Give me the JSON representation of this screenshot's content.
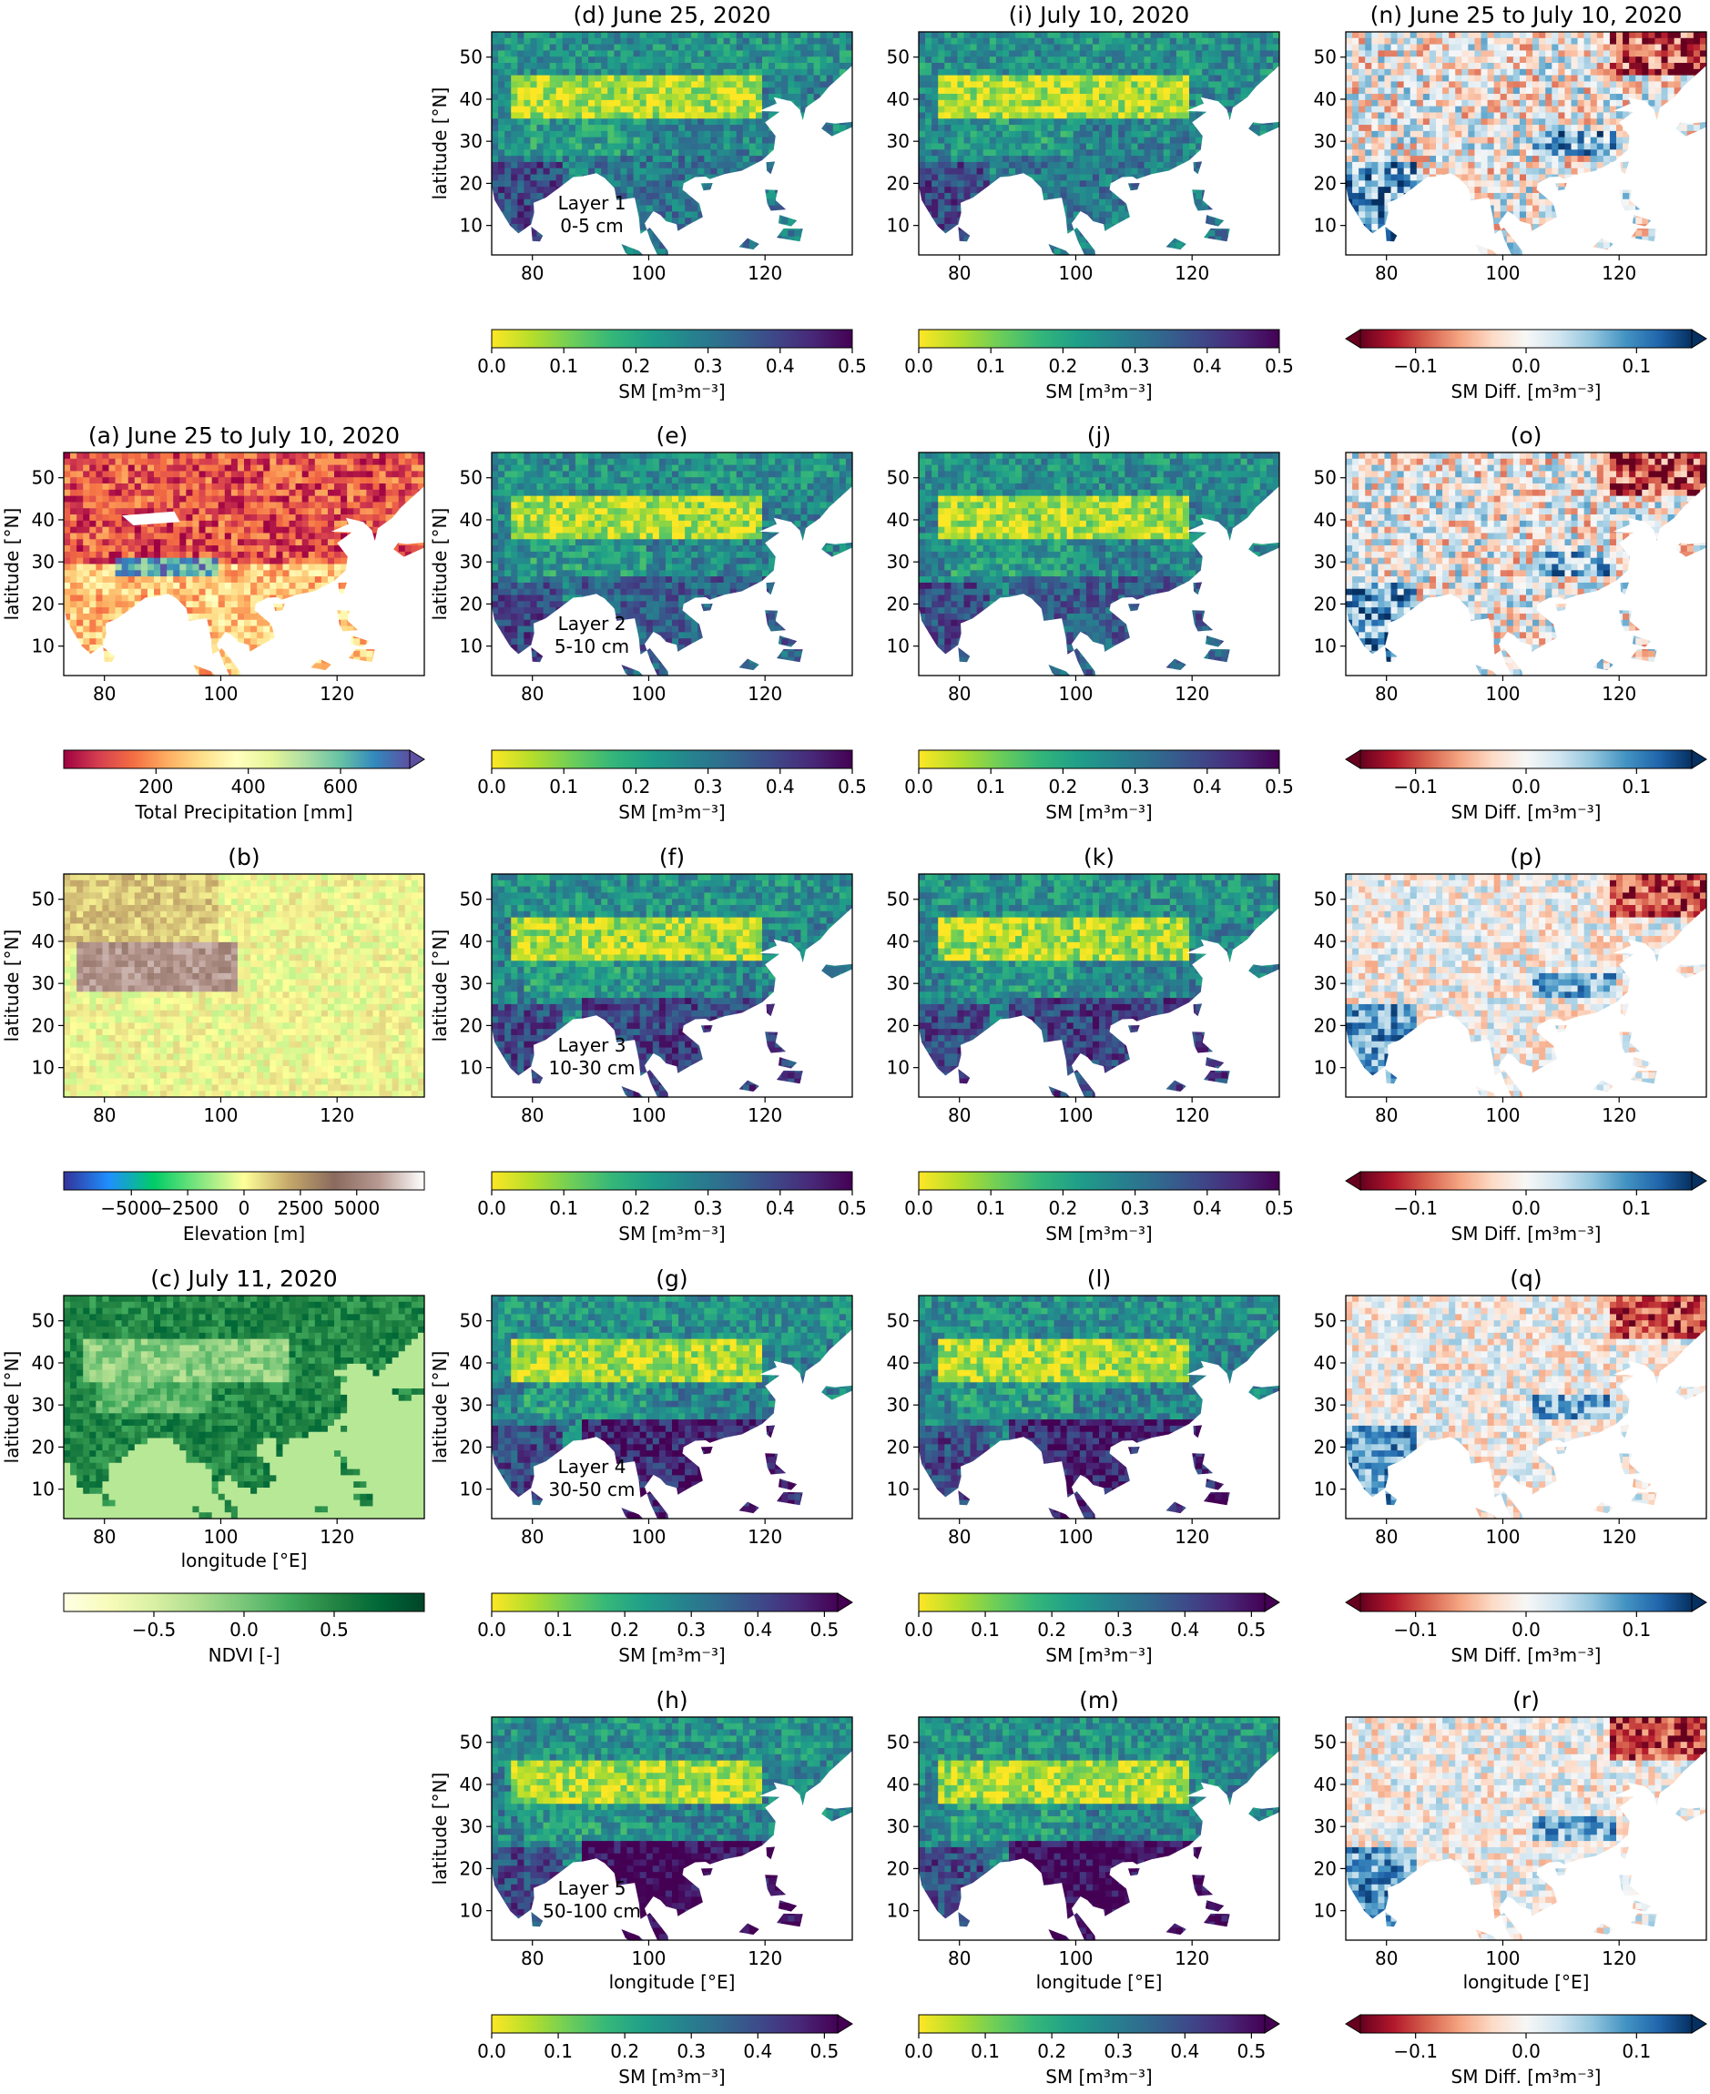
{
  "figure": {
    "description_free": true,
    "colors": {
      "sea": "#ffffff",
      "frame": "#000000",
      "viridis": [
        "#fde725",
        "#b5de2b",
        "#6ece58",
        "#35b779",
        "#1f9e89",
        "#26828e",
        "#31688e",
        "#3e4989",
        "#482878",
        "#440154"
      ],
      "rdbu": [
        "#67001f",
        "#b2182b",
        "#d6604d",
        "#f4a582",
        "#fddbc7",
        "#f7f7f7",
        "#d1e5f0",
        "#92c5de",
        "#4393c3",
        "#2166ac",
        "#053061"
      ],
      "spectral": [
        "#9e0142",
        "#d53e4f",
        "#f46d43",
        "#fdae61",
        "#fee08b",
        "#ffffbf",
        "#e6f598",
        "#abdda4",
        "#66c2a5",
        "#3288bd",
        "#5e4fa2"
      ],
      "terrain": [
        "#333399",
        "#1f8fff",
        "#00cc66",
        "#80e680",
        "#ffff99",
        "#c4a86a",
        "#8a6a5e",
        "#b89a92",
        "#ffffff"
      ],
      "greens": [
        "#ffffe5",
        "#f7fcb9",
        "#d9f0a3",
        "#addd8e",
        "#78c679",
        "#41ab5d",
        "#238443",
        "#006837",
        "#004529"
      ]
    }
  },
  "chart_data": [
    {
      "id": "a",
      "type": "heatmap",
      "title": "(a) June 25 to July 10, 2020",
      "variable": "Total Precipitation",
      "colormap": "Spectral",
      "xlabel": "",
      "ylabel": "latitude [°N]",
      "xlim": [
        73,
        135
      ],
      "ylim": [
        3,
        56
      ],
      "xticks": [
        80,
        100,
        120
      ],
      "yticks": [
        10,
        20,
        30,
        40,
        50
      ],
      "colorbar": {
        "label": "Total Precipitation [mm]",
        "range": [
          0,
          750
        ],
        "ticks": [
          200,
          400,
          600
        ],
        "extend": "max"
      }
    },
    {
      "id": "b",
      "type": "heatmap",
      "title": "(b)",
      "variable": "Elevation",
      "colormap": "terrain",
      "xlabel": "",
      "ylabel": "latitude [°N]",
      "xlim": [
        73,
        135
      ],
      "ylim": [
        3,
        56
      ],
      "xticks": [
        80,
        100,
        120
      ],
      "yticks": [
        10,
        20,
        30,
        40,
        50
      ],
      "colorbar": {
        "label": "Elevation [m]",
        "range": [
          -8000,
          8000
        ],
        "ticks": [
          -5000,
          -2500,
          0,
          2500,
          5000
        ],
        "tick_labels": [
          "−5000",
          "−2500",
          "0",
          "2500",
          "5000"
        ],
        "extend": "neither"
      }
    },
    {
      "id": "c",
      "type": "heatmap",
      "title": "(c) July 11, 2020",
      "variable": "NDVI",
      "colormap": "Greens",
      "xlabel": "longitude [°E]",
      "ylabel": "latitude [°N]",
      "xlim": [
        73,
        135
      ],
      "ylim": [
        3,
        56
      ],
      "xticks": [
        80,
        100,
        120
      ],
      "yticks": [
        10,
        20,
        30,
        40,
        50
      ],
      "colorbar": {
        "label": "NDVI [-]",
        "range": [
          -1,
          1
        ],
        "ticks": [
          -0.5,
          0.0,
          0.5
        ],
        "tick_labels": [
          "−0.5",
          "0.0",
          "0.5"
        ],
        "extend": "neither"
      }
    },
    {
      "id": "d",
      "type": "heatmap",
      "title": "(d) June 25, 2020",
      "variable": "SM",
      "layer": "Layer 1",
      "depth": "0-5 cm",
      "colormap": "viridis_r",
      "xlabel": "",
      "ylabel": "latitude [°N]",
      "xlim": [
        73,
        135
      ],
      "ylim": [
        3,
        56
      ],
      "xticks": [
        80,
        100,
        120
      ],
      "yticks": [
        10,
        20,
        30,
        40,
        50
      ],
      "colorbar": {
        "label": "SM [m³m⁻³]",
        "range": [
          0,
          0.5
        ],
        "ticks": [
          0.0,
          0.1,
          0.2,
          0.3,
          0.4,
          0.5
        ],
        "tick_labels": [
          "0.0",
          "0.1",
          "0.2",
          "0.3",
          "0.4",
          "0.5"
        ],
        "extend": "neither"
      }
    },
    {
      "id": "e",
      "type": "heatmap",
      "title": "(e)",
      "variable": "SM",
      "layer": "Layer 2",
      "depth": "5-10 cm",
      "colormap": "viridis_r",
      "xlabel": "",
      "ylabel": "latitude [°N]",
      "xlim": [
        73,
        135
      ],
      "ylim": [
        3,
        56
      ],
      "xticks": [
        80,
        100,
        120
      ],
      "yticks": [
        10,
        20,
        30,
        40,
        50
      ],
      "colorbar": {
        "label": "SM [m³m⁻³]",
        "range": [
          0,
          0.5
        ],
        "ticks": [
          0.0,
          0.1,
          0.2,
          0.3,
          0.4,
          0.5
        ],
        "tick_labels": [
          "0.0",
          "0.1",
          "0.2",
          "0.3",
          "0.4",
          "0.5"
        ],
        "extend": "neither"
      }
    },
    {
      "id": "f",
      "type": "heatmap",
      "title": "(f)",
      "variable": "SM",
      "layer": "Layer 3",
      "depth": "10-30 cm",
      "colormap": "viridis_r",
      "xlabel": "",
      "ylabel": "latitude [°N]",
      "xlim": [
        73,
        135
      ],
      "ylim": [
        3,
        56
      ],
      "xticks": [
        80,
        100,
        120
      ],
      "yticks": [
        10,
        20,
        30,
        40,
        50
      ],
      "colorbar": {
        "label": "SM [m³m⁻³]",
        "range": [
          0,
          0.5
        ],
        "ticks": [
          0.0,
          0.1,
          0.2,
          0.3,
          0.4,
          0.5
        ],
        "tick_labels": [
          "0.0",
          "0.1",
          "0.2",
          "0.3",
          "0.4",
          "0.5"
        ],
        "extend": "neither"
      }
    },
    {
      "id": "g",
      "type": "heatmap",
      "title": "(g)",
      "variable": "SM",
      "layer": "Layer 4",
      "depth": "30-50 cm",
      "colormap": "viridis_r",
      "xlabel": "",
      "ylabel": "latitude [°N]",
      "xlim": [
        73,
        135
      ],
      "ylim": [
        3,
        56
      ],
      "xticks": [
        80,
        100,
        120
      ],
      "yticks": [
        10,
        20,
        30,
        40,
        50
      ],
      "colorbar": {
        "label": "SM [m³m⁻³]",
        "range": [
          0,
          0.52
        ],
        "ticks": [
          0.0,
          0.1,
          0.2,
          0.3,
          0.4,
          0.5
        ],
        "tick_labels": [
          "0.0",
          "0.1",
          "0.2",
          "0.3",
          "0.4",
          "0.5"
        ],
        "extend": "max"
      }
    },
    {
      "id": "h",
      "type": "heatmap",
      "title": "(h)",
      "variable": "SM",
      "layer": "Layer 5",
      "depth": "50-100 cm",
      "colormap": "viridis_r",
      "xlabel": "longitude [°E]",
      "ylabel": "latitude [°N]",
      "xlim": [
        73,
        135
      ],
      "ylim": [
        3,
        56
      ],
      "xticks": [
        80,
        100,
        120
      ],
      "yticks": [
        10,
        20,
        30,
        40,
        50
      ],
      "colorbar": {
        "label": "SM [m³m⁻³]",
        "range": [
          0,
          0.52
        ],
        "ticks": [
          0.0,
          0.1,
          0.2,
          0.3,
          0.4,
          0.5
        ],
        "tick_labels": [
          "0.0",
          "0.1",
          "0.2",
          "0.3",
          "0.4",
          "0.5"
        ],
        "extend": "max"
      }
    },
    {
      "id": "i",
      "type": "heatmap",
      "title": "(i) July 10, 2020",
      "variable": "SM",
      "colormap": "viridis_r",
      "xlabel": "",
      "ylabel": "",
      "xlim": [
        73,
        135
      ],
      "ylim": [
        3,
        56
      ],
      "xticks": [
        80,
        100,
        120
      ],
      "yticks": [
        10,
        20,
        30,
        40,
        50
      ],
      "colorbar": {
        "label": "SM [m³m⁻³]",
        "range": [
          0,
          0.5
        ],
        "ticks": [
          0.0,
          0.1,
          0.2,
          0.3,
          0.4,
          0.5
        ],
        "tick_labels": [
          "0.0",
          "0.1",
          "0.2",
          "0.3",
          "0.4",
          "0.5"
        ],
        "extend": "neither"
      }
    },
    {
      "id": "j",
      "type": "heatmap",
      "title": "(j)",
      "variable": "SM",
      "colormap": "viridis_r",
      "xlabel": "",
      "ylabel": "",
      "xlim": [
        73,
        135
      ],
      "ylim": [
        3,
        56
      ],
      "xticks": [
        80,
        100,
        120
      ],
      "yticks": [
        10,
        20,
        30,
        40,
        50
      ],
      "colorbar": {
        "label": "SM [m³m⁻³]",
        "range": [
          0,
          0.5
        ],
        "ticks": [
          0.0,
          0.1,
          0.2,
          0.3,
          0.4,
          0.5
        ],
        "tick_labels": [
          "0.0",
          "0.1",
          "0.2",
          "0.3",
          "0.4",
          "0.5"
        ],
        "extend": "neither"
      }
    },
    {
      "id": "k",
      "type": "heatmap",
      "title": "(k)",
      "variable": "SM",
      "colormap": "viridis_r",
      "xlabel": "",
      "ylabel": "",
      "xlim": [
        73,
        135
      ],
      "ylim": [
        3,
        56
      ],
      "xticks": [
        80,
        100,
        120
      ],
      "yticks": [
        10,
        20,
        30,
        40,
        50
      ],
      "colorbar": {
        "label": "SM [m³m⁻³]",
        "range": [
          0,
          0.5
        ],
        "ticks": [
          0.0,
          0.1,
          0.2,
          0.3,
          0.4,
          0.5
        ],
        "tick_labels": [
          "0.0",
          "0.1",
          "0.2",
          "0.3",
          "0.4",
          "0.5"
        ],
        "extend": "neither"
      }
    },
    {
      "id": "l",
      "type": "heatmap",
      "title": "(l)",
      "variable": "SM",
      "colormap": "viridis_r",
      "xlabel": "",
      "ylabel": "",
      "xlim": [
        73,
        135
      ],
      "ylim": [
        3,
        56
      ],
      "xticks": [
        80,
        100,
        120
      ],
      "yticks": [
        10,
        20,
        30,
        40,
        50
      ],
      "colorbar": {
        "label": "SM [m³m⁻³]",
        "range": [
          0,
          0.52
        ],
        "ticks": [
          0.0,
          0.1,
          0.2,
          0.3,
          0.4,
          0.5
        ],
        "tick_labels": [
          "0.0",
          "0.1",
          "0.2",
          "0.3",
          "0.4",
          "0.5"
        ],
        "extend": "max"
      }
    },
    {
      "id": "m",
      "type": "heatmap",
      "title": "(m)",
      "variable": "SM",
      "colormap": "viridis_r",
      "xlabel": "longitude [°E]",
      "ylabel": "",
      "xlim": [
        73,
        135
      ],
      "ylim": [
        3,
        56
      ],
      "xticks": [
        80,
        100,
        120
      ],
      "yticks": [
        10,
        20,
        30,
        40,
        50
      ],
      "colorbar": {
        "label": "SM [m³m⁻³]",
        "range": [
          0,
          0.52
        ],
        "ticks": [
          0.0,
          0.1,
          0.2,
          0.3,
          0.4,
          0.5
        ],
        "tick_labels": [
          "0.0",
          "0.1",
          "0.2",
          "0.3",
          "0.4",
          "0.5"
        ],
        "extend": "max"
      }
    },
    {
      "id": "n",
      "type": "heatmap",
      "title": "(n) June 25 to July 10, 2020",
      "variable": "SM Diff.",
      "colormap": "RdBu",
      "xlabel": "",
      "ylabel": "",
      "xlim": [
        73,
        135
      ],
      "ylim": [
        3,
        56
      ],
      "xticks": [
        80,
        100,
        120
      ],
      "yticks": [
        10,
        20,
        30,
        40,
        50
      ],
      "colorbar": {
        "label": "SM Diff. [m³m⁻³]",
        "range": [
          -0.15,
          0.15
        ],
        "ticks": [
          -0.1,
          0.0,
          0.1
        ],
        "tick_labels": [
          "−0.1",
          "0.0",
          "0.1"
        ],
        "extend": "both"
      }
    },
    {
      "id": "o",
      "type": "heatmap",
      "title": "(o)",
      "variable": "SM Diff.",
      "colormap": "RdBu",
      "xlabel": "",
      "ylabel": "",
      "xlim": [
        73,
        135
      ],
      "ylim": [
        3,
        56
      ],
      "xticks": [
        80,
        100,
        120
      ],
      "yticks": [
        10,
        20,
        30,
        40,
        50
      ],
      "colorbar": {
        "label": "SM Diff. [m³m⁻³]",
        "range": [
          -0.15,
          0.15
        ],
        "ticks": [
          -0.1,
          0.0,
          0.1
        ],
        "tick_labels": [
          "−0.1",
          "0.0",
          "0.1"
        ],
        "extend": "both"
      }
    },
    {
      "id": "p",
      "type": "heatmap",
      "title": "(p)",
      "variable": "SM Diff.",
      "colormap": "RdBu",
      "xlabel": "",
      "ylabel": "",
      "xlim": [
        73,
        135
      ],
      "ylim": [
        3,
        56
      ],
      "xticks": [
        80,
        100,
        120
      ],
      "yticks": [
        10,
        20,
        30,
        40,
        50
      ],
      "colorbar": {
        "label": "SM Diff. [m³m⁻³]",
        "range": [
          -0.15,
          0.15
        ],
        "ticks": [
          -0.1,
          0.0,
          0.1
        ],
        "tick_labels": [
          "−0.1",
          "0.0",
          "0.1"
        ],
        "extend": "both"
      }
    },
    {
      "id": "q",
      "type": "heatmap",
      "title": "(q)",
      "variable": "SM Diff.",
      "colormap": "RdBu",
      "xlabel": "",
      "ylabel": "",
      "xlim": [
        73,
        135
      ],
      "ylim": [
        3,
        56
      ],
      "xticks": [
        80,
        100,
        120
      ],
      "yticks": [
        10,
        20,
        30,
        40,
        50
      ],
      "colorbar": {
        "label": "SM Diff. [m³m⁻³]",
        "range": [
          -0.15,
          0.15
        ],
        "ticks": [
          -0.1,
          0.0,
          0.1
        ],
        "tick_labels": [
          "−0.1",
          "0.0",
          "0.1"
        ],
        "extend": "both"
      }
    },
    {
      "id": "r",
      "type": "heatmap",
      "title": "(r)",
      "variable": "SM Diff.",
      "colormap": "RdBu",
      "xlabel": "longitude [°E]",
      "ylabel": "",
      "xlim": [
        73,
        135
      ],
      "ylim": [
        3,
        56
      ],
      "xticks": [
        80,
        100,
        120
      ],
      "yticks": [
        10,
        20,
        30,
        40,
        50
      ],
      "colorbar": {
        "label": "SM Diff. [m³m⁻³]",
        "range": [
          -0.15,
          0.15
        ],
        "ticks": [
          -0.1,
          0.0,
          0.1
        ],
        "tick_labels": [
          "−0.1",
          "0.0",
          "0.1"
        ],
        "extend": "both"
      }
    }
  ]
}
